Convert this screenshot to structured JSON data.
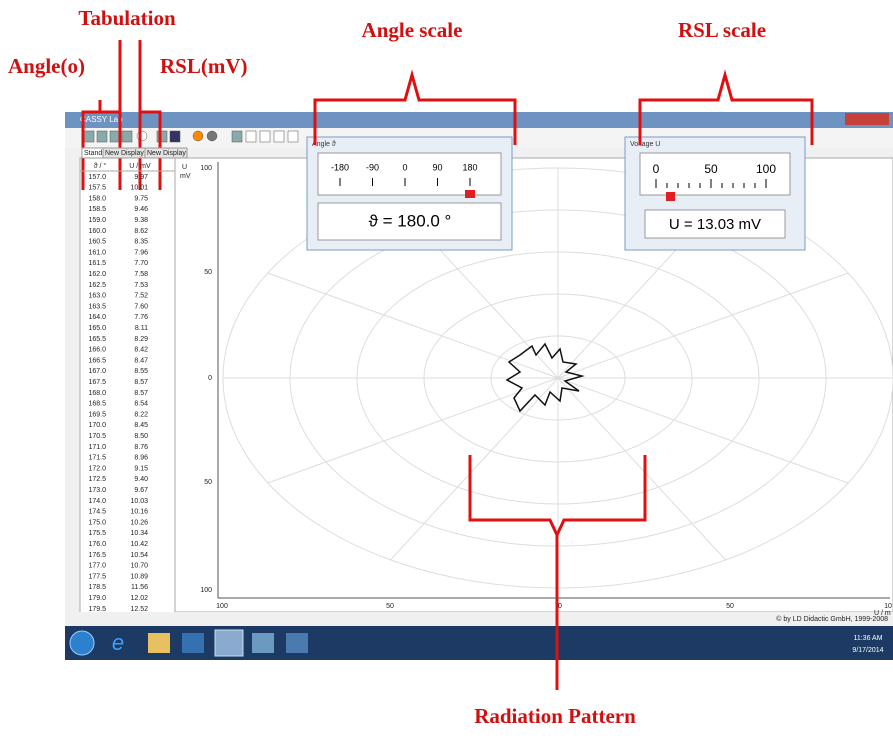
{
  "annotations": {
    "tabulation": "Tabulation",
    "angle_label": "Angle(o)",
    "rsl_label": "RSL(mV)",
    "angle_scale": "Angle scale",
    "rsl_scale": "RSL scale",
    "radiation_pattern": "Radiation Pattern"
  },
  "window": {
    "title": "CASSY Lab",
    "tabs": [
      "Standard",
      "New Display",
      "New Display"
    ]
  },
  "table": {
    "headers": [
      "ϑ / °",
      "U / mV"
    ],
    "rows": [
      [
        "157.0",
        "9.97"
      ],
      [
        "157.5",
        "10.01"
      ],
      [
        "158.0",
        "9.75"
      ],
      [
        "158.5",
        "9.46"
      ],
      [
        "159.0",
        "9.38"
      ],
      [
        "160.0",
        "8.62"
      ],
      [
        "160.5",
        "8.35"
      ],
      [
        "161.0",
        "7.96"
      ],
      [
        "161.5",
        "7.70"
      ],
      [
        "162.0",
        "7.58"
      ],
      [
        "162.5",
        "7.53"
      ],
      [
        "163.0",
        "7.52"
      ],
      [
        "163.5",
        "7.60"
      ],
      [
        "164.0",
        "7.76"
      ],
      [
        "165.0",
        "8.11"
      ],
      [
        "165.5",
        "8.29"
      ],
      [
        "166.0",
        "8.42"
      ],
      [
        "166.5",
        "8.47"
      ],
      [
        "167.0",
        "8.55"
      ],
      [
        "167.5",
        "8.57"
      ],
      [
        "168.0",
        "8.57"
      ],
      [
        "168.5",
        "8.54"
      ],
      [
        "169.5",
        "8.22"
      ],
      [
        "170.0",
        "8.45"
      ],
      [
        "170.5",
        "8.50"
      ],
      [
        "171.0",
        "8.76"
      ],
      [
        "171.5",
        "8.96"
      ],
      [
        "172.0",
        "9.15"
      ],
      [
        "172.5",
        "9.40"
      ],
      [
        "173.0",
        "9.67"
      ],
      [
        "174.0",
        "10.03"
      ],
      [
        "174.5",
        "10.16"
      ],
      [
        "175.0",
        "10.26"
      ],
      [
        "175.5",
        "10.34"
      ],
      [
        "176.0",
        "10.42"
      ],
      [
        "176.5",
        "10.54"
      ],
      [
        "177.0",
        "10.70"
      ],
      [
        "177.5",
        "10.89"
      ],
      [
        "178.5",
        "11.56"
      ],
      [
        "179.0",
        "12.02"
      ],
      [
        "179.5",
        "12.52"
      ]
    ]
  },
  "angle_meter": {
    "title": "Angle ϑ",
    "scale": [
      "-180",
      "-90",
      "0",
      "90",
      "180"
    ],
    "readout": "ϑ =  180.0 °"
  },
  "voltage_meter": {
    "title": "Voltage U",
    "scale": [
      "0",
      "50",
      "100"
    ],
    "readout": "U =  13.03 mV"
  },
  "plot": {
    "y_axis_label": "U",
    "y_axis_unit": "mV",
    "y_labels": [
      "100",
      "50",
      "0",
      "50",
      "100"
    ],
    "x_labels": [
      "100",
      "50",
      "0",
      "50",
      "10"
    ],
    "x_axis_label": "U / m"
  },
  "status": "© by LD Didactic GmbH, 1999-2008",
  "taskbar": {
    "time": "11:36 AM",
    "date": "9/17/2014"
  }
}
